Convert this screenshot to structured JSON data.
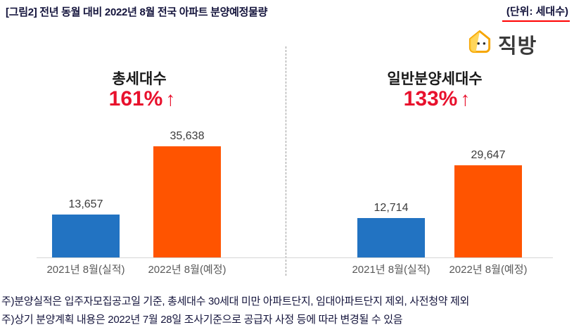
{
  "header": {
    "title": "[그림2] 전년 동월 대비 2022년 8월 전국 아파트 분양예정물량",
    "unit": "(단위: 세대수)"
  },
  "logo": {
    "text": "직방"
  },
  "colors": {
    "bar_2021": "#2273c2",
    "bar_2022": "#ff5400",
    "accent_red": "#e8112d"
  },
  "chart_data": {
    "type": "bar",
    "title": "전년 동월 대비 2022년 8월 전국 아파트 분양예정물량",
    "unit": "세대수",
    "categories": [
      "2021년 8월(실적)",
      "2022년 8월(예정)"
    ],
    "groups": [
      {
        "name": "총세대수",
        "growth_label": "161%",
        "growth_direction": "up",
        "values": [
          13657,
          35638
        ],
        "value_labels": [
          "13,657",
          "35,638"
        ]
      },
      {
        "name": "일반분양세대수",
        "growth_label": "133%",
        "growth_direction": "up",
        "values": [
          12714,
          29647
        ],
        "value_labels": [
          "12,714",
          "29,647"
        ]
      }
    ],
    "series": [
      {
        "name": "2021년 8월(실적)",
        "color": "#2273c2"
      },
      {
        "name": "2022년 8월(예정)",
        "color": "#ff5400"
      }
    ],
    "ylim": [
      0,
      40000
    ],
    "grid": false,
    "legend": "none"
  },
  "growth_arrow": "↑",
  "notes": [
    "주)분양실적은 입주자모집공고일 기준, 총세대수 30세대 미만 아파트단지, 임대아파트단지 제외, 사전청약 제외",
    "주)상기 분양계획 내용은 2022년 7월 28일 조사기준으로 공급자 사정 등에 따라 변경될 수 있음"
  ]
}
